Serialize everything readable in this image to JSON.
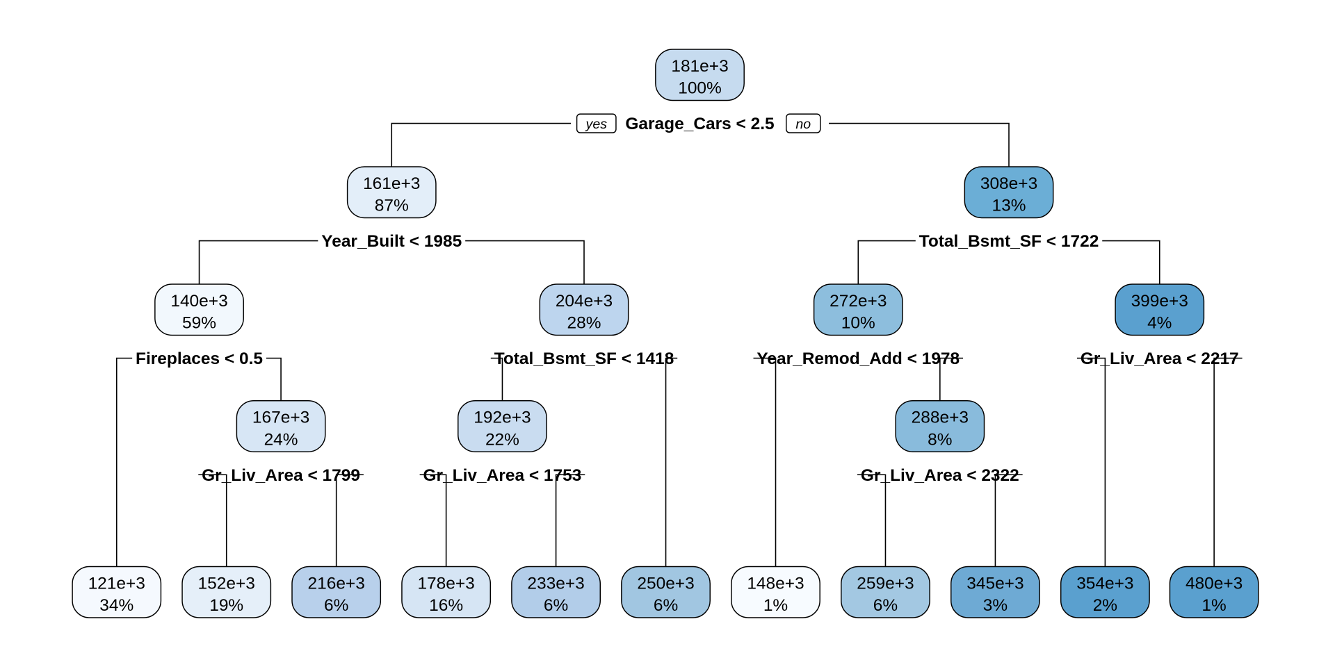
{
  "tree": {
    "yes_label": "yes",
    "no_label": "no",
    "nodes": [
      {
        "id": "n1",
        "value": "181e+3",
        "pct": "100%",
        "fill": "#c6dbef",
        "split": "Garage_Cars < 2.5"
      },
      {
        "id": "n2",
        "value": "161e+3",
        "pct": "87%",
        "fill": "#e3eef9",
        "split": "Year_Built < 1985"
      },
      {
        "id": "n3",
        "value": "308e+3",
        "pct": "13%",
        "fill": "#6baed6",
        "split": "Total_Bsmt_SF < 1722"
      },
      {
        "id": "n4",
        "value": "140e+3",
        "pct": "59%",
        "fill": "#f2f8fd",
        "split": "Fireplaces < 0.5"
      },
      {
        "id": "n5",
        "value": "204e+3",
        "pct": "28%",
        "fill": "#bdd5ee",
        "split": "Total_Bsmt_SF < 1418"
      },
      {
        "id": "n6",
        "value": "272e+3",
        "pct": "10%",
        "fill": "#8dbedd",
        "split": "Year_Remod_Add < 1978"
      },
      {
        "id": "n7",
        "value": "399e+3",
        "pct": "4%",
        "fill": "#5aa0cf",
        "split": "Gr_Liv_Area < 2217"
      },
      {
        "id": "n9",
        "value": "167e+3",
        "pct": "24%",
        "fill": "#d7e6f5",
        "split": "Gr_Liv_Area < 1799"
      },
      {
        "id": "n10",
        "value": "192e+3",
        "pct": "22%",
        "fill": "#c9dcf0",
        "split": "Gr_Liv_Area < 1753"
      },
      {
        "id": "n13",
        "value": "288e+3",
        "pct": "8%",
        "fill": "#89bbdc",
        "split": "Gr_Liv_Area < 2322"
      },
      {
        "id": "l1",
        "value": "121e+3",
        "pct": "34%",
        "fill": "#f5f9fe",
        "split": ""
      },
      {
        "id": "l2",
        "value": "152e+3",
        "pct": "19%",
        "fill": "#e5eff9",
        "split": ""
      },
      {
        "id": "l3",
        "value": "216e+3",
        "pct": "6%",
        "fill": "#b8d0eb",
        "split": ""
      },
      {
        "id": "l4",
        "value": "178e+3",
        "pct": "16%",
        "fill": "#d6e5f4",
        "split": ""
      },
      {
        "id": "l5",
        "value": "233e+3",
        "pct": "6%",
        "fill": "#b2cde9",
        "split": ""
      },
      {
        "id": "l6",
        "value": "250e+3",
        "pct": "6%",
        "fill": "#a1c6e1",
        "split": ""
      },
      {
        "id": "l7",
        "value": "148e+3",
        "pct": "1%",
        "fill": "#f7fbff",
        "split": ""
      },
      {
        "id": "l8",
        "value": "259e+3",
        "pct": "6%",
        "fill": "#a3c8e2",
        "split": ""
      },
      {
        "id": "l9",
        "value": "345e+3",
        "pct": "3%",
        "fill": "#6eaad4",
        "split": ""
      },
      {
        "id": "l10",
        "value": "354e+3",
        "pct": "2%",
        "fill": "#5aa0cf",
        "split": ""
      },
      {
        "id": "l11",
        "value": "480e+3",
        "pct": "1%",
        "fill": "#5aa0cf",
        "split": ""
      }
    ],
    "edges": [
      [
        "n1",
        "n2"
      ],
      [
        "n1",
        "n3"
      ],
      [
        "n2",
        "n4"
      ],
      [
        "n2",
        "n5"
      ],
      [
        "n3",
        "n6"
      ],
      [
        "n3",
        "n7"
      ],
      [
        "n4",
        "l1"
      ],
      [
        "n4",
        "n9"
      ],
      [
        "n9",
        "l2"
      ],
      [
        "n9",
        "l3"
      ],
      [
        "n5",
        "n10"
      ],
      [
        "n5",
        "l6"
      ],
      [
        "n10",
        "l4"
      ],
      [
        "n10",
        "l5"
      ],
      [
        "n6",
        "l7"
      ],
      [
        "n6",
        "n13"
      ],
      [
        "n13",
        "l8"
      ],
      [
        "n13",
        "l9"
      ],
      [
        "n7",
        "l10"
      ],
      [
        "n7",
        "l11"
      ]
    ]
  }
}
